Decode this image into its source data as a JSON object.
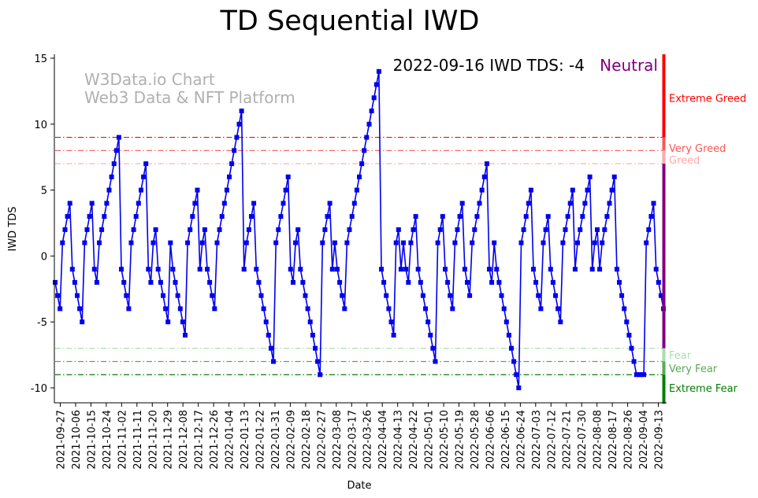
{
  "colors": {
    "series": "#0000ee",
    "extreme_greed": "#ff0000",
    "very_greed": "#ff5555",
    "greed": "#ffaaaa",
    "fear": "#aaddaa",
    "very_fear": "#55aa55",
    "extreme_fear": "#008000",
    "neutral": "#800080",
    "watermark": "#b0b0b0"
  },
  "chart_data": {
    "type": "line",
    "title": "TD Sequential IWD",
    "xlabel": "Date",
    "ylabel": "IWD TDS",
    "ylim": [
      -11.2,
      15.3
    ],
    "yticks": [
      -10,
      -5,
      0,
      5,
      10,
      15
    ],
    "x_start": "2021-09-24",
    "x_end": "2022-09-16",
    "xticks": [
      "2021-09-27",
      "2021-10-06",
      "2021-10-15",
      "2021-10-24",
      "2021-11-02",
      "2021-11-11",
      "2021-11-20",
      "2021-11-29",
      "2021-12-08",
      "2021-12-17",
      "2021-12-26",
      "2022-01-04",
      "2022-01-13",
      "2022-01-22",
      "2022-01-31",
      "2022-02-09",
      "2022-02-18",
      "2022-02-27",
      "2022-03-08",
      "2022-03-17",
      "2022-03-26",
      "2022-04-04",
      "2022-04-13",
      "2022-04-22",
      "2022-05-01",
      "2022-05-10",
      "2022-05-19",
      "2022-05-28",
      "2022-06-06",
      "2022-06-15",
      "2022-06-24",
      "2022-07-03",
      "2022-07-12",
      "2022-07-21",
      "2022-07-30",
      "2022-08-08",
      "2022-08-17",
      "2022-08-26",
      "2022-09-04",
      "2022-09-13"
    ],
    "series": [
      {
        "name": "IWD TDS",
        "values": [
          -2,
          -3,
          -4,
          1,
          2,
          3,
          4,
          -1,
          -2,
          -3,
          -4,
          -5,
          1,
          2,
          3,
          4,
          -1,
          -2,
          1,
          2,
          3,
          4,
          5,
          6,
          7,
          8,
          9,
          -1,
          -2,
          -3,
          -4,
          1,
          2,
          3,
          4,
          5,
          6,
          7,
          -1,
          -2,
          1,
          2,
          -1,
          -2,
          -3,
          -4,
          -5,
          1,
          -1,
          -2,
          -3,
          -4,
          -5,
          -6,
          1,
          2,
          3,
          4,
          5,
          -1,
          1,
          2,
          -1,
          -2,
          -3,
          -4,
          1,
          2,
          3,
          4,
          5,
          6,
          7,
          8,
          9,
          10,
          11,
          -1,
          1,
          2,
          3,
          4,
          -1,
          -2,
          -3,
          -4,
          -5,
          -6,
          -7,
          -8,
          1,
          2,
          3,
          4,
          5,
          6,
          -1,
          -2,
          1,
          2,
          -1,
          -2,
          -3,
          -4,
          -5,
          -6,
          -7,
          -8,
          -9,
          1,
          2,
          3,
          4,
          -1,
          1,
          -1,
          -2,
          -3,
          -4,
          1,
          2,
          3,
          4,
          5,
          6,
          7,
          8,
          9,
          10,
          11,
          12,
          13,
          14,
          -1,
          -2,
          -3,
          -4,
          -5,
          -6,
          1,
          2,
          -1,
          1,
          -1,
          -2,
          1,
          2,
          3,
          -1,
          -2,
          -3,
          -4,
          -5,
          -6,
          -7,
          -8,
          1,
          2,
          3,
          -1,
          -2,
          -3,
          -4,
          1,
          2,
          3,
          4,
          -1,
          -2,
          -3,
          1,
          2,
          3,
          4,
          5,
          6,
          7,
          -1,
          -2,
          1,
          -1,
          -2,
          -3,
          -4,
          -5,
          -6,
          -7,
          -8,
          -9,
          -10,
          1,
          2,
          3,
          4,
          5,
          -1,
          -2,
          -3,
          -4,
          1,
          2,
          3,
          -1,
          -2,
          -3,
          -4,
          -5,
          1,
          2,
          3,
          4,
          5,
          -1,
          1,
          2,
          3,
          4,
          5,
          6,
          -1,
          1,
          2,
          -1,
          1,
          2,
          3,
          4,
          5,
          6,
          -1,
          -2,
          -3,
          -4,
          -5,
          -6,
          -7,
          -8,
          -9,
          -9,
          -9,
          -9,
          1,
          2,
          3,
          4,
          -1,
          -2,
          -3,
          -4
        ]
      }
    ],
    "thresholds": [
      {
        "value": 9,
        "label": "Extreme Greed",
        "color_key": "extreme_greed"
      },
      {
        "value": 8,
        "label": "Very Greed",
        "color_key": "very_greed"
      },
      {
        "value": 7,
        "label": "Greed",
        "color_key": "greed"
      },
      {
        "value": -7,
        "label": "Fear",
        "color_key": "fear"
      },
      {
        "value": -8,
        "label": "Very Fear",
        "color_key": "very_fear"
      },
      {
        "value": -9,
        "label": "Extreme Fear",
        "color_key": "extreme_fear"
      }
    ],
    "annotation": "2022-09-16 IWD TDS: -4",
    "status": "Neutral",
    "watermark_line1": "W3Data.io Chart",
    "watermark_line2": "Web3 Data & NFT Platform"
  }
}
